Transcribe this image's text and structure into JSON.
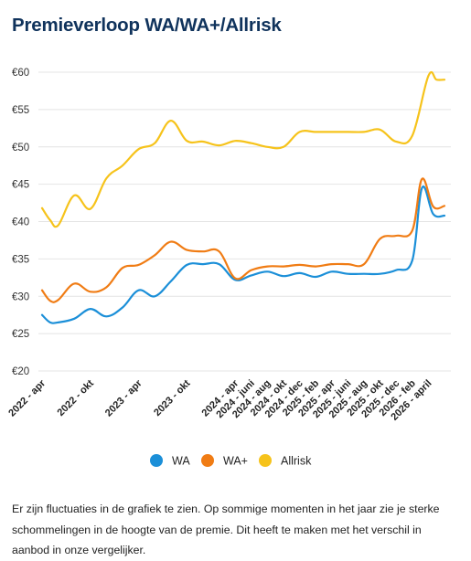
{
  "title": "Premieverloop WA/WA+/Allrisk",
  "note": "Er zijn fluctuaties in de grafiek te zien. Op sommige momenten in het jaar zie je sterke schommelingen in de hoogte van de premie. Dit heeft te maken met het verschil in aanbod in onze vergelijker.",
  "chart_data": {
    "type": "line",
    "y_ticks": [
      "€20",
      "€25",
      "€30",
      "€35",
      "€40",
      "€45",
      "€50",
      "€55",
      "€60"
    ],
    "ylim": [
      20,
      60
    ],
    "grid": "horizontal",
    "legend_position": "bottom",
    "x_ticks": [
      {
        "label": "2022 - apr",
        "x": 0
      },
      {
        "label": "2022 - okt",
        "x": 6
      },
      {
        "label": "2023 - apr",
        "x": 12
      },
      {
        "label": "2023 - okt",
        "x": 18
      },
      {
        "label": "2024 - apr",
        "x": 24
      },
      {
        "label": "2024 - juni",
        "x": 26
      },
      {
        "label": "2024 - aug",
        "x": 28
      },
      {
        "label": "2024 - okt",
        "x": 30
      },
      {
        "label": "2024 - dec",
        "x": 32
      },
      {
        "label": "2025 - feb",
        "x": 34
      },
      {
        "label": "2025 - apr",
        "x": 36
      },
      {
        "label": "2025 - juni",
        "x": 38
      },
      {
        "label": "2025 - aug",
        "x": 40
      },
      {
        "label": "2025 - okt",
        "x": 42
      },
      {
        "label": "2025 - dec",
        "x": 44
      },
      {
        "label": "2026 - feb",
        "x": 46
      },
      {
        "label": "2026 - april",
        "x": 48
      }
    ],
    "series": [
      {
        "name": "WA",
        "color": "#1b8fd8",
        "points": [
          [
            0,
            27.5
          ],
          [
            0.5,
            26.5
          ],
          [
            1,
            26.5
          ],
          [
            2,
            27
          ],
          [
            3,
            28.3
          ],
          [
            4,
            27.3
          ],
          [
            5,
            28.5
          ],
          [
            6,
            30.8
          ],
          [
            7,
            30
          ],
          [
            8,
            32
          ],
          [
            9,
            34.2
          ],
          [
            10,
            34.3
          ],
          [
            11,
            34.3
          ],
          [
            12,
            32.2
          ],
          [
            13,
            32.8
          ],
          [
            14,
            33.3
          ],
          [
            15,
            32.7
          ],
          [
            16,
            33.1
          ],
          [
            17,
            32.6
          ],
          [
            18,
            33.3
          ],
          [
            19,
            33
          ],
          [
            20,
            33
          ],
          [
            21,
            33
          ],
          [
            22,
            33.5
          ],
          [
            23,
            34.8
          ],
          [
            23.6,
            44.5
          ],
          [
            24.3,
            41
          ],
          [
            25,
            40.8
          ]
        ]
      },
      {
        "name": "WA+",
        "color": "#f07c14",
        "points": [
          [
            0,
            30.8
          ],
          [
            0.5,
            29.4
          ],
          [
            1,
            29.5
          ],
          [
            2,
            31.7
          ],
          [
            3,
            30.6
          ],
          [
            4,
            31.2
          ],
          [
            5,
            33.8
          ],
          [
            6,
            34.2
          ],
          [
            7,
            35.5
          ],
          [
            8,
            37.3
          ],
          [
            9,
            36.2
          ],
          [
            10,
            36
          ],
          [
            11,
            36
          ],
          [
            12,
            32.4
          ],
          [
            13,
            33.5
          ],
          [
            14,
            34
          ],
          [
            15,
            34
          ],
          [
            16,
            34.2
          ],
          [
            17,
            34
          ],
          [
            18,
            34.3
          ],
          [
            19,
            34.3
          ],
          [
            20,
            34.3
          ],
          [
            21,
            37.7
          ],
          [
            22,
            38.1
          ],
          [
            23,
            38.8
          ],
          [
            23.6,
            45.7
          ],
          [
            24.3,
            42
          ],
          [
            25,
            42.1
          ]
        ]
      },
      {
        "name": "Allrisk",
        "color": "#f6c31b",
        "points": [
          [
            0,
            41.8
          ],
          [
            0.5,
            40.2
          ],
          [
            1,
            39.5
          ],
          [
            2,
            43.5
          ],
          [
            3,
            41.7
          ],
          [
            4,
            45.8
          ],
          [
            5,
            47.5
          ],
          [
            6,
            49.7
          ],
          [
            7,
            50.5
          ],
          [
            8,
            53.5
          ],
          [
            9,
            50.8
          ],
          [
            10,
            50.7
          ],
          [
            11,
            50.2
          ],
          [
            12,
            50.8
          ],
          [
            13,
            50.5
          ],
          [
            14,
            50
          ],
          [
            15,
            50
          ],
          [
            16,
            52
          ],
          [
            17,
            52
          ],
          [
            18,
            52
          ],
          [
            19,
            52
          ],
          [
            20,
            52
          ],
          [
            21,
            52.3
          ],
          [
            22,
            50.7
          ],
          [
            23,
            51.5
          ],
          [
            24,
            59.5
          ],
          [
            24.5,
            59
          ],
          [
            25,
            59
          ]
        ]
      }
    ]
  }
}
